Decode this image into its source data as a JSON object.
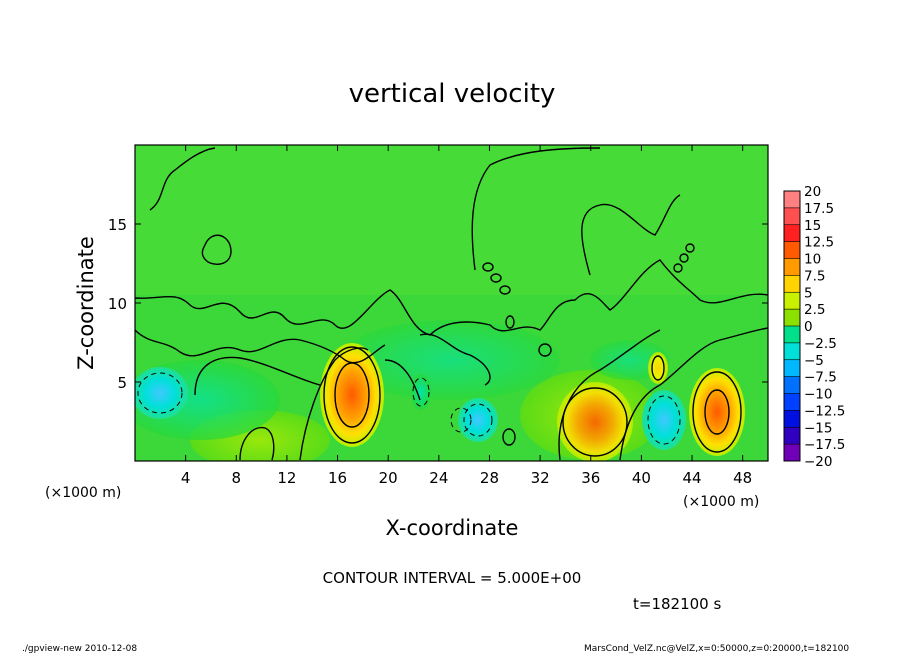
{
  "chart_data": {
    "type": "heatmap",
    "title": "vertical velocity",
    "xlabel": "X-coordinate",
    "ylabel": "Z-coordinate",
    "x_unit_label": "(×1000 m)",
    "xlim": [
      0,
      50
    ],
    "ylim": [
      0,
      20
    ],
    "x_ticks": [
      4,
      8,
      12,
      16,
      20,
      24,
      28,
      32,
      36,
      40,
      44,
      48
    ],
    "y_ticks": [
      5,
      10,
      15
    ],
    "colorbar_labels": [
      "20",
      "17.5",
      "15",
      "12.5",
      "10",
      "7.5",
      "5",
      "2.5",
      "0",
      "−2.5",
      "−5",
      "−7.5",
      "−10",
      "−12.5",
      "−15",
      "−17.5",
      "−20"
    ],
    "colorbar_colors": [
      "#ff8080",
      "#ff5050",
      "#ff2020",
      "#ff5a00",
      "#ff9a00",
      "#ffd400",
      "#c8f000",
      "#8ce000",
      "#2ed22e",
      "#00e08a",
      "#00e0d8",
      "#00b8ff",
      "#0070ff",
      "#0040ff",
      "#0010e0",
      "#3000c0",
      "#7000b8"
    ],
    "contour_interval_text": "CONTOUR INTERVAL = 5.000E+00",
    "time_text": "t=182100 s",
    "features": [
      {
        "x": 17.5,
        "z": 4.5,
        "peak": 12.5
      },
      {
        "x": 36.2,
        "z": 2.6,
        "peak": 10
      },
      {
        "x": 46,
        "z": 3.2,
        "peak": 12.5
      },
      {
        "x": 41.5,
        "z": 6.0,
        "peak": 7.5
      },
      {
        "x": 1.8,
        "z": 4.5,
        "peak": -7.5
      },
      {
        "x": 27.2,
        "z": 2.8,
        "peak": -7.5
      },
      {
        "x": 41.5,
        "z": 2.8,
        "peak": -7.5
      },
      {
        "x": 22.5,
        "z": 4.8,
        "peak": -5
      }
    ]
  },
  "footer": {
    "left": "./gpview-new   2010-12-08",
    "right": "MarsCond_VelZ.nc@VelZ,x=0:50000,z=0:20000,t=182100"
  }
}
